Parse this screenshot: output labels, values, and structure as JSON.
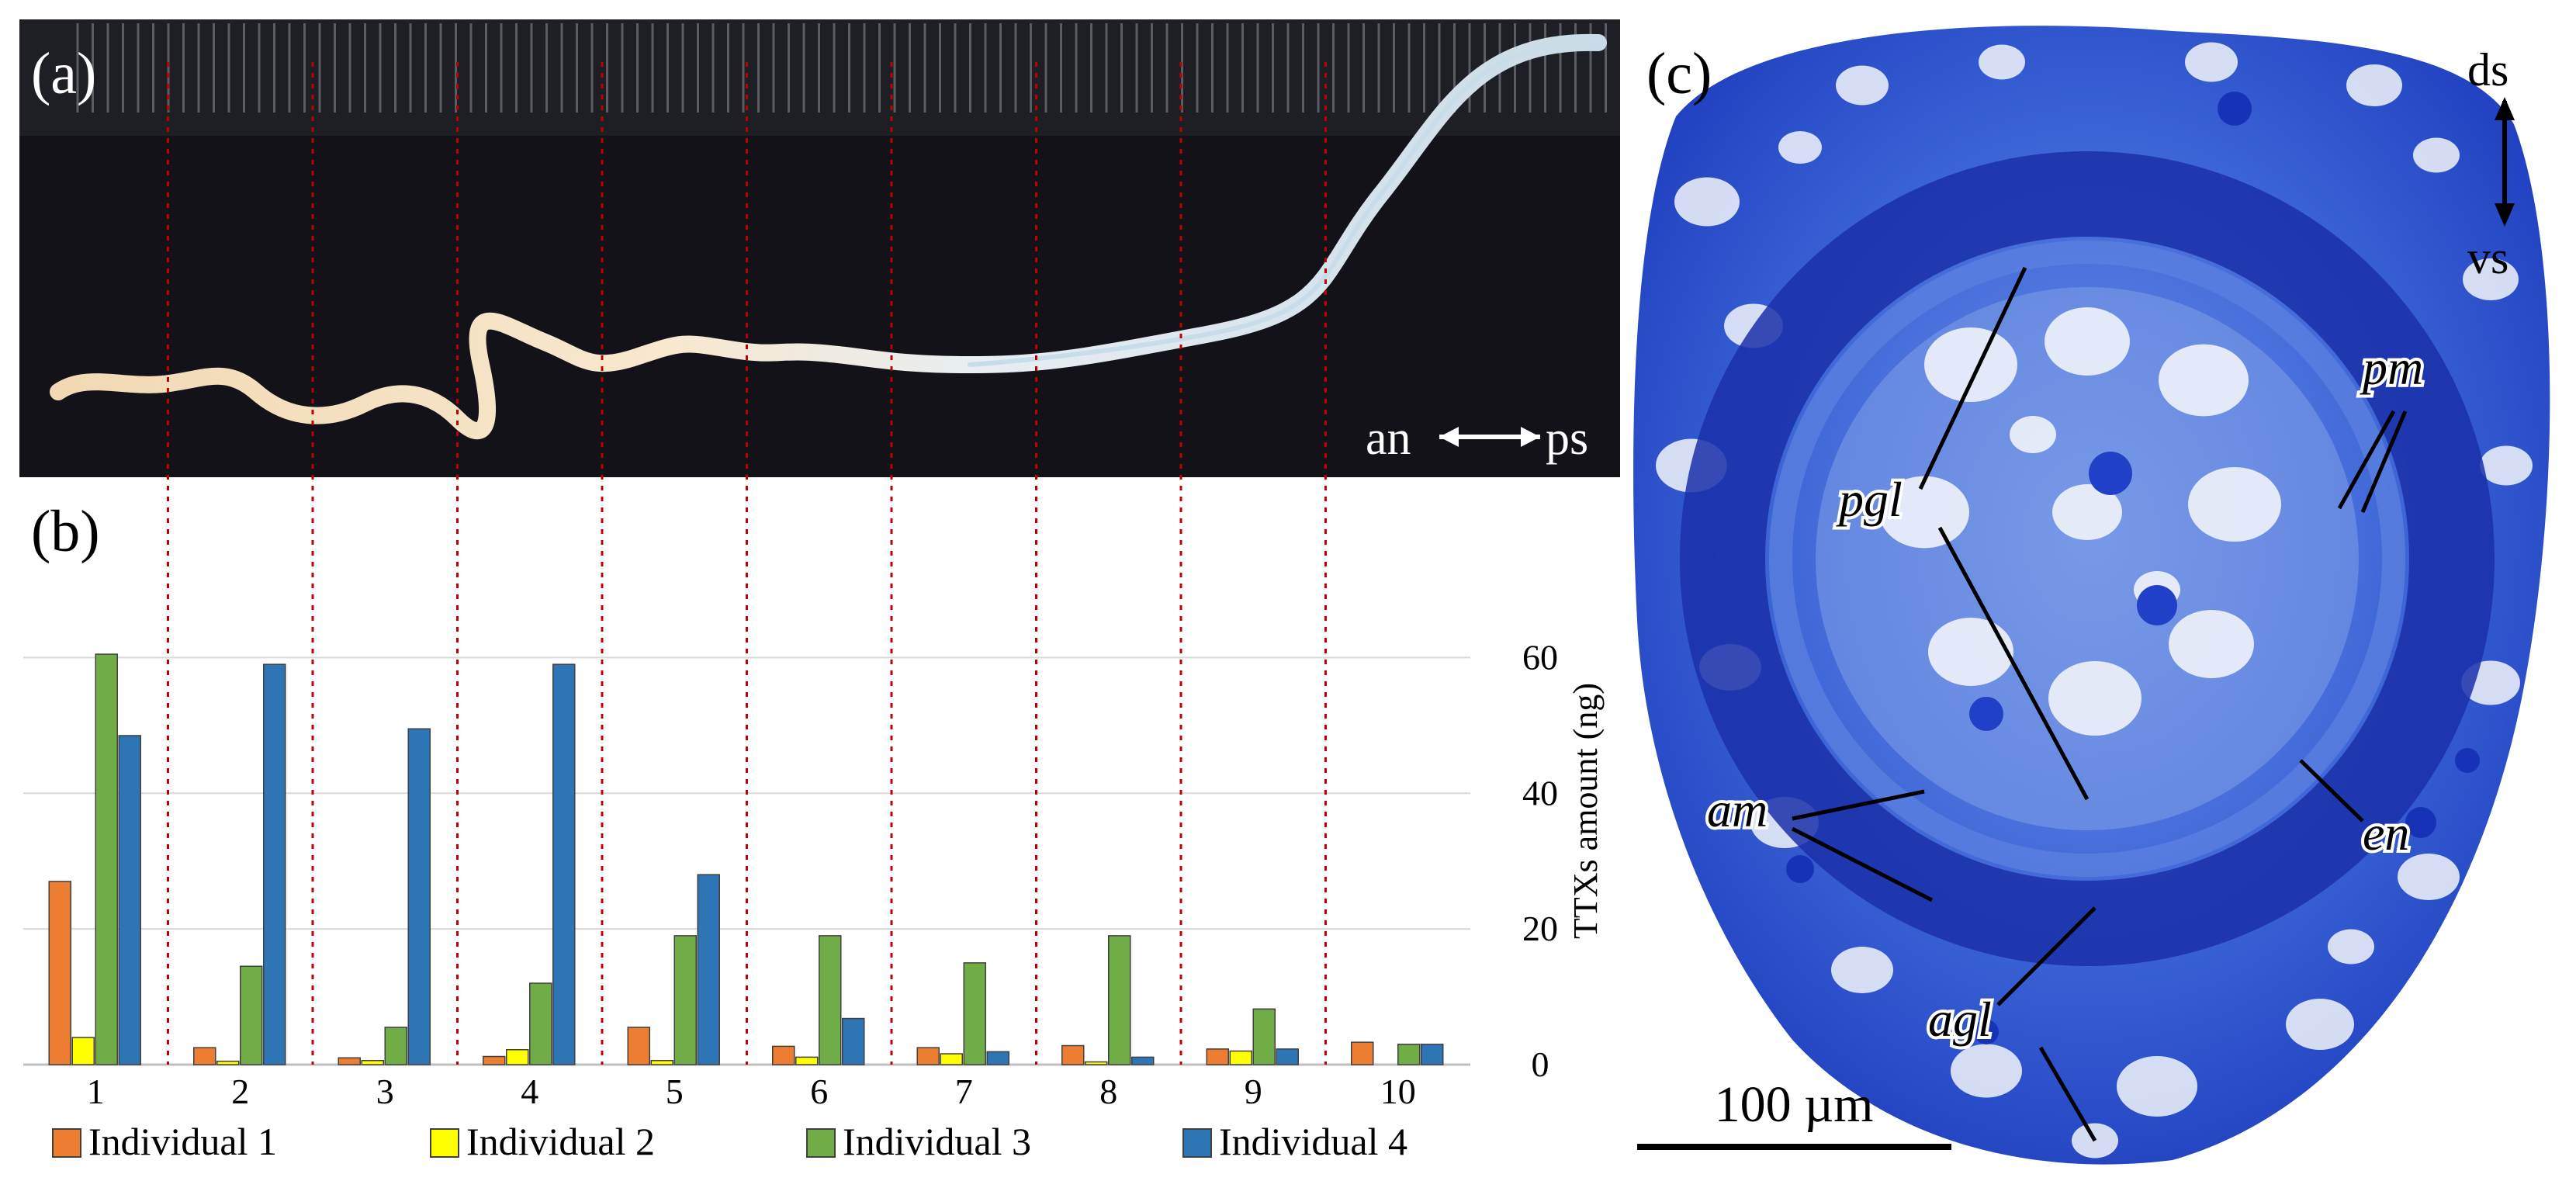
{
  "panel_a": {
    "label": "(a)",
    "orientation_label_left": "an",
    "orientation_label_right": "ps"
  },
  "panel_b": {
    "label": "(b)"
  },
  "panel_c": {
    "label": "(c)",
    "orientation_top": "ds",
    "orientation_bottom": "vs",
    "labels": [
      "pgl",
      "pm",
      "am",
      "en",
      "agl"
    ],
    "scale_bar": "100 µm"
  },
  "colors": {
    "series": [
      "#ED7D31",
      "#FFFF00",
      "#70AD47",
      "#2E75B6"
    ],
    "dashed_lines": "#C00000",
    "stain": "#2a4fd1"
  },
  "chart_data": {
    "type": "bar",
    "categories": [
      "1",
      "2",
      "3",
      "4",
      "5",
      "6",
      "7",
      "8",
      "9",
      "10"
    ],
    "series": [
      {
        "name": "Individual 1",
        "values": [
          27,
          2.5,
          1,
          1.2,
          5.5,
          2.7,
          2.5,
          2.8,
          2.3,
          3.3
        ]
      },
      {
        "name": "Individual 2",
        "values": [
          4,
          0.5,
          0.6,
          2.2,
          0.6,
          1.1,
          1.6,
          0.4,
          2,
          0
        ]
      },
      {
        "name": "Individual 3",
        "values": [
          60.5,
          14.5,
          5.5,
          12,
          19,
          19,
          15,
          19,
          8.2,
          3
        ]
      },
      {
        "name": "Individual 4",
        "values": [
          48.5,
          59,
          49.5,
          59,
          28,
          6.8,
          1.9,
          1.1,
          2.3,
          3
        ]
      }
    ],
    "ylabel": "TTXs amount (ng)",
    "xlabel": "",
    "ylim": [
      0,
      70
    ],
    "yticks": [
      "0",
      "20",
      "40",
      "60"
    ],
    "grid": true,
    "legend_position": "bottom"
  }
}
